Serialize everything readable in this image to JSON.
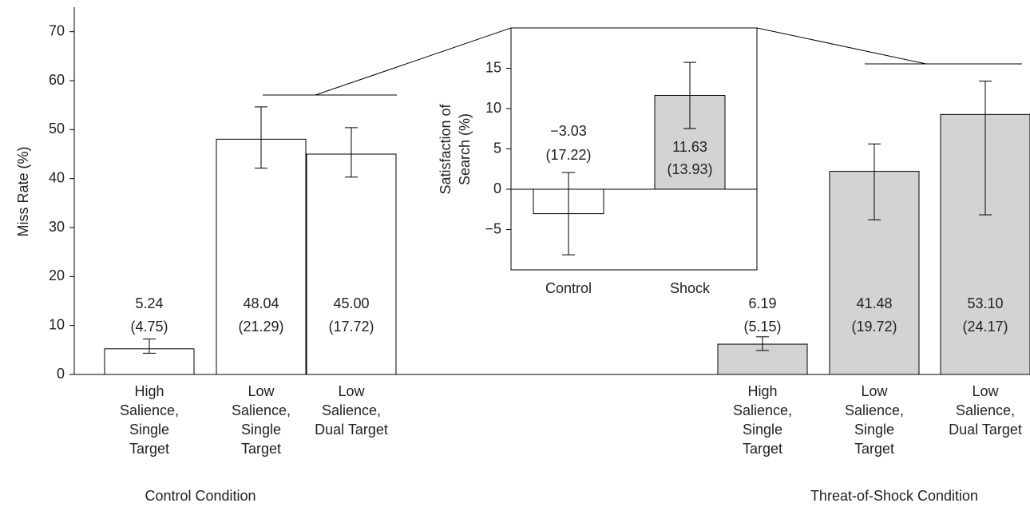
{
  "chart_data": [
    {
      "type": "bar",
      "y_label": "Miss Rate (%)",
      "ylim": [
        0,
        75
      ],
      "yticks": [
        0,
        10,
        20,
        30,
        40,
        50,
        60,
        70
      ],
      "series": [
        {
          "name": "Control Condition",
          "color": "#ffffff",
          "categories": [
            "High Salience, Single Target",
            "Low Salience, Single Target",
            "Low Salience, Dual Target"
          ],
          "values": [
            5.24,
            48.04,
            45.0
          ],
          "value_labels": [
            "5.24",
            "48.04",
            "45.00"
          ],
          "sd_labels": [
            "(4.75)",
            "(21.29)",
            "(17.72)"
          ],
          "error_minus": [
            0.9,
            5.9,
            4.7
          ],
          "error_plus": [
            2.0,
            6.6,
            5.4
          ]
        },
        {
          "name": "Threat-of-Shock Condition",
          "color": "#d3d3d3",
          "categories": [
            "High Salience, Single Target",
            "Low Salience, Single Target",
            "Low Salience, Dual Target"
          ],
          "values": [
            6.19,
            41.48,
            53.1
          ],
          "value_labels": [
            "6.19",
            "41.48",
            "53.10"
          ],
          "sd_labels": [
            "(5.15)",
            "(19.72)",
            "(24.17)"
          ],
          "error_minus": [
            1.3,
            9.9,
            20.5
          ],
          "error_plus": [
            1.5,
            5.6,
            6.8
          ]
        }
      ]
    },
    {
      "type": "bar",
      "y_label": "Satisfaction of Search (%)",
      "ylim": [
        -10,
        20
      ],
      "yticks": [
        {
          "value": -5,
          "label": "−5"
        },
        0,
        5,
        10,
        15
      ],
      "categories": [
        "Control",
        "Shock"
      ],
      "values": [
        -3.03,
        11.63
      ],
      "value_labels": [
        "−3.03",
        "11.63"
      ],
      "sd_labels": [
        "(17.22)",
        "(13.93)"
      ],
      "colors": [
        "#ffffff",
        "#d3d3d3"
      ],
      "errors": [
        5.1,
        4.1
      ]
    }
  ]
}
